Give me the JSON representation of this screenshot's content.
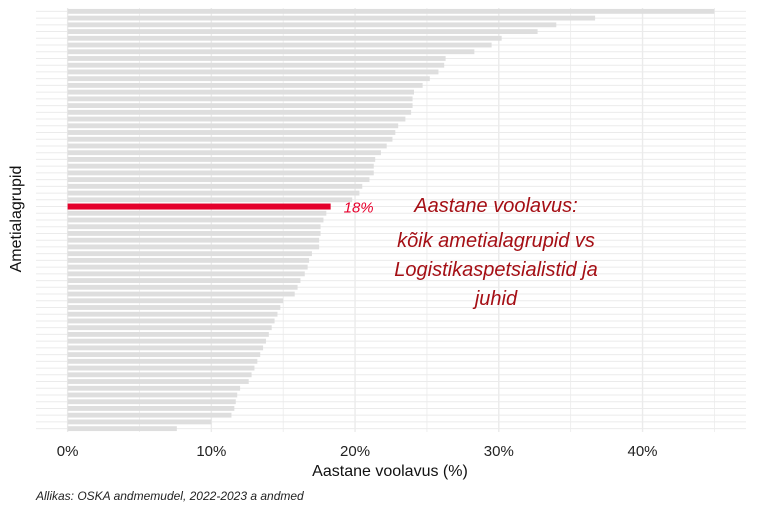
{
  "colors": {
    "background": "#ffffff",
    "grid": "#ebebeb",
    "bar": "#dedede",
    "highlight": "#e4002b",
    "highlight_label": "#e8002d",
    "annotation": "#a50f15"
  },
  "source": "Allikas: OSKA andmemudel, 2022-2023 a andmed",
  "annotation_lines": [
    "Aastane voolavus:",
    "kõik ametialagrupid vs",
    "Logistikaspetsialistid ja",
    "juhid"
  ],
  "chart_data": {
    "type": "bar",
    "orientation": "horizontal",
    "xlabel": "Aastane voolavus (%)",
    "ylabel": "Ametialagrupid",
    "xlim": [
      -0.022,
      0.472
    ],
    "xticks": [
      0,
      0.1,
      0.2,
      0.3,
      0.4
    ],
    "xtick_labels": [
      "0%",
      "10%",
      "20%",
      "30%",
      "40%"
    ],
    "grid": true,
    "highlight": {
      "label": "18%",
      "value": 0.183,
      "index": 29
    },
    "values": [
      0.45,
      0.367,
      0.34,
      0.327,
      0.302,
      0.295,
      0.283,
      0.263,
      0.262,
      0.258,
      0.252,
      0.247,
      0.241,
      0.24,
      0.24,
      0.239,
      0.235,
      0.23,
      0.228,
      0.226,
      0.222,
      0.218,
      0.214,
      0.213,
      0.213,
      0.21,
      0.205,
      0.203,
      0.198,
      0.183,
      0.18,
      0.178,
      0.176,
      0.176,
      0.175,
      0.175,
      0.17,
      0.168,
      0.167,
      0.165,
      0.162,
      0.16,
      0.158,
      0.15,
      0.148,
      0.146,
      0.144,
      0.142,
      0.14,
      0.138,
      0.136,
      0.134,
      0.132,
      0.13,
      0.128,
      0.126,
      0.12,
      0.118,
      0.117,
      0.116,
      0.114,
      0.1,
      0.076
    ]
  }
}
